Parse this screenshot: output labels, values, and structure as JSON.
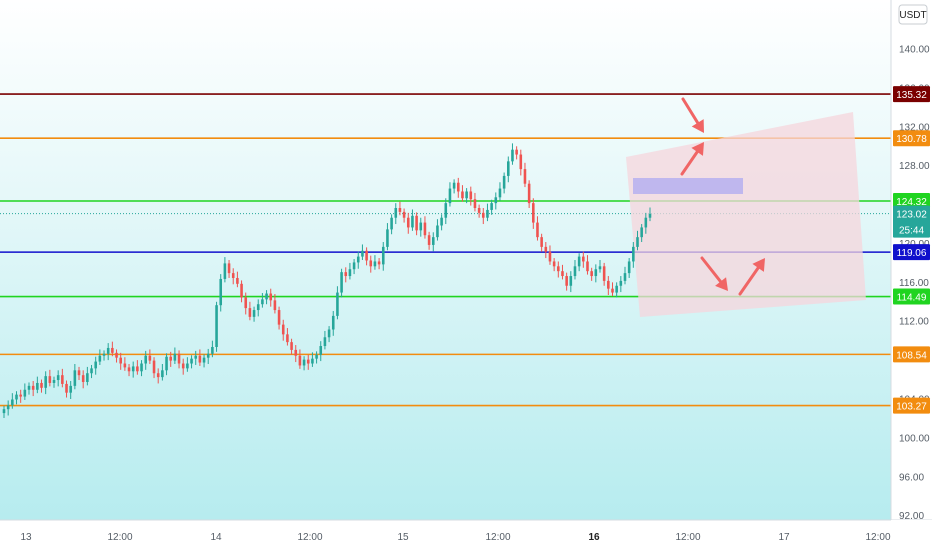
{
  "chart_data": {
    "type": "candlestick",
    "currency": "USDT",
    "ylim": [
      91.5,
      145
    ],
    "y_ticks": [
      140.0,
      128.0,
      116.0,
      112.0,
      100.0,
      96.0,
      92.0
    ],
    "y_ticks_partial": [
      136.0,
      132.0,
      124.0,
      120.0,
      104.0
    ],
    "time_ticks": [
      {
        "label": "13",
        "bold": false
      },
      {
        "label": "12:00",
        "bold": false
      },
      {
        "label": "14",
        "bold": false
      },
      {
        "label": "12:00",
        "bold": false
      },
      {
        "label": "15",
        "bold": false
      },
      {
        "label": "12:00",
        "bold": false
      },
      {
        "label": "16",
        "bold": true
      },
      {
        "label": "12:00",
        "bold": false
      },
      {
        "label": "17",
        "bold": false
      },
      {
        "label": "12:00",
        "bold": false
      }
    ],
    "horizontal_levels": [
      {
        "value": 135.32,
        "label": "135.32",
        "color": "#7a0000"
      },
      {
        "value": 130.78,
        "label": "130.78",
        "color": "#f28c0f"
      },
      {
        "value": 124.32,
        "label": "124.32",
        "color": "#20d420"
      },
      {
        "value": 119.06,
        "label": "119.06",
        "color": "#1010cc"
      },
      {
        "value": 114.49,
        "label": "114.49",
        "color": "#20d420"
      },
      {
        "value": 108.54,
        "label": "108.54",
        "color": "#f28c0f"
      },
      {
        "value": 103.27,
        "label": "103.27",
        "color": "#f28c0f"
      }
    ],
    "last_price": {
      "value": 123.02,
      "label": "123.02",
      "countdown": "25:44",
      "color": "#26a69a"
    },
    "up_color": "#26a69a",
    "down_color": "#ef5350",
    "closes": [
      102.9,
      103.3,
      103.9,
      104.4,
      104.2,
      104.9,
      105.3,
      104.9,
      105.6,
      105.1,
      106.3,
      105.6,
      105.9,
      106.4,
      105.5,
      104.6,
      105.3,
      106.9,
      106.4,
      105.7,
      106.6,
      107.1,
      107.8,
      108.4,
      108.6,
      109.2,
      108.7,
      108.2,
      107.6,
      107.2,
      106.8,
      107.3,
      106.8,
      107.6,
      108.4,
      107.9,
      106.6,
      106.2,
      106.9,
      108.3,
      107.9,
      108.6,
      107.6,
      107.1,
      107.6,
      108.1,
      108.4,
      107.7,
      108.2,
      108.6,
      109.3,
      113.6,
      116.3,
      117.9,
      116.9,
      116.4,
      115.8,
      114.4,
      113.3,
      112.4,
      113.1,
      113.7,
      114.2,
      114.8,
      114.1,
      113.1,
      111.6,
      110.6,
      109.8,
      109.0,
      108.4,
      107.4,
      108.0,
      107.6,
      108.1,
      108.5,
      109.4,
      110.3,
      111.1,
      112.5,
      114.9,
      117.0,
      116.6,
      117.3,
      118.0,
      118.6,
      119.2,
      118.2,
      117.6,
      118.1,
      117.8,
      119.6,
      121.4,
      122.6,
      123.6,
      123.2,
      122.6,
      121.6,
      122.8,
      121.3,
      122.1,
      120.8,
      119.8,
      120.6,
      121.8,
      122.6,
      124.1,
      125.6,
      126.2,
      125.3,
      124.6,
      125.3,
      124.5,
      123.6,
      123.1,
      122.6,
      123.4,
      124.1,
      124.7,
      125.6,
      126.9,
      128.4,
      129.6,
      129.1,
      127.6,
      126.1,
      124.1,
      122.1,
      120.6,
      119.6,
      119.1,
      118.1,
      117.6,
      117.1,
      116.6,
      115.6,
      116.6,
      117.6,
      118.6,
      118.1,
      117.1,
      116.6,
      117.3,
      117.6,
      116.1,
      115.3,
      114.9,
      115.6,
      116.1,
      116.9,
      118.1,
      119.6,
      120.6,
      121.6,
      122.6,
      123.0
    ]
  }
}
